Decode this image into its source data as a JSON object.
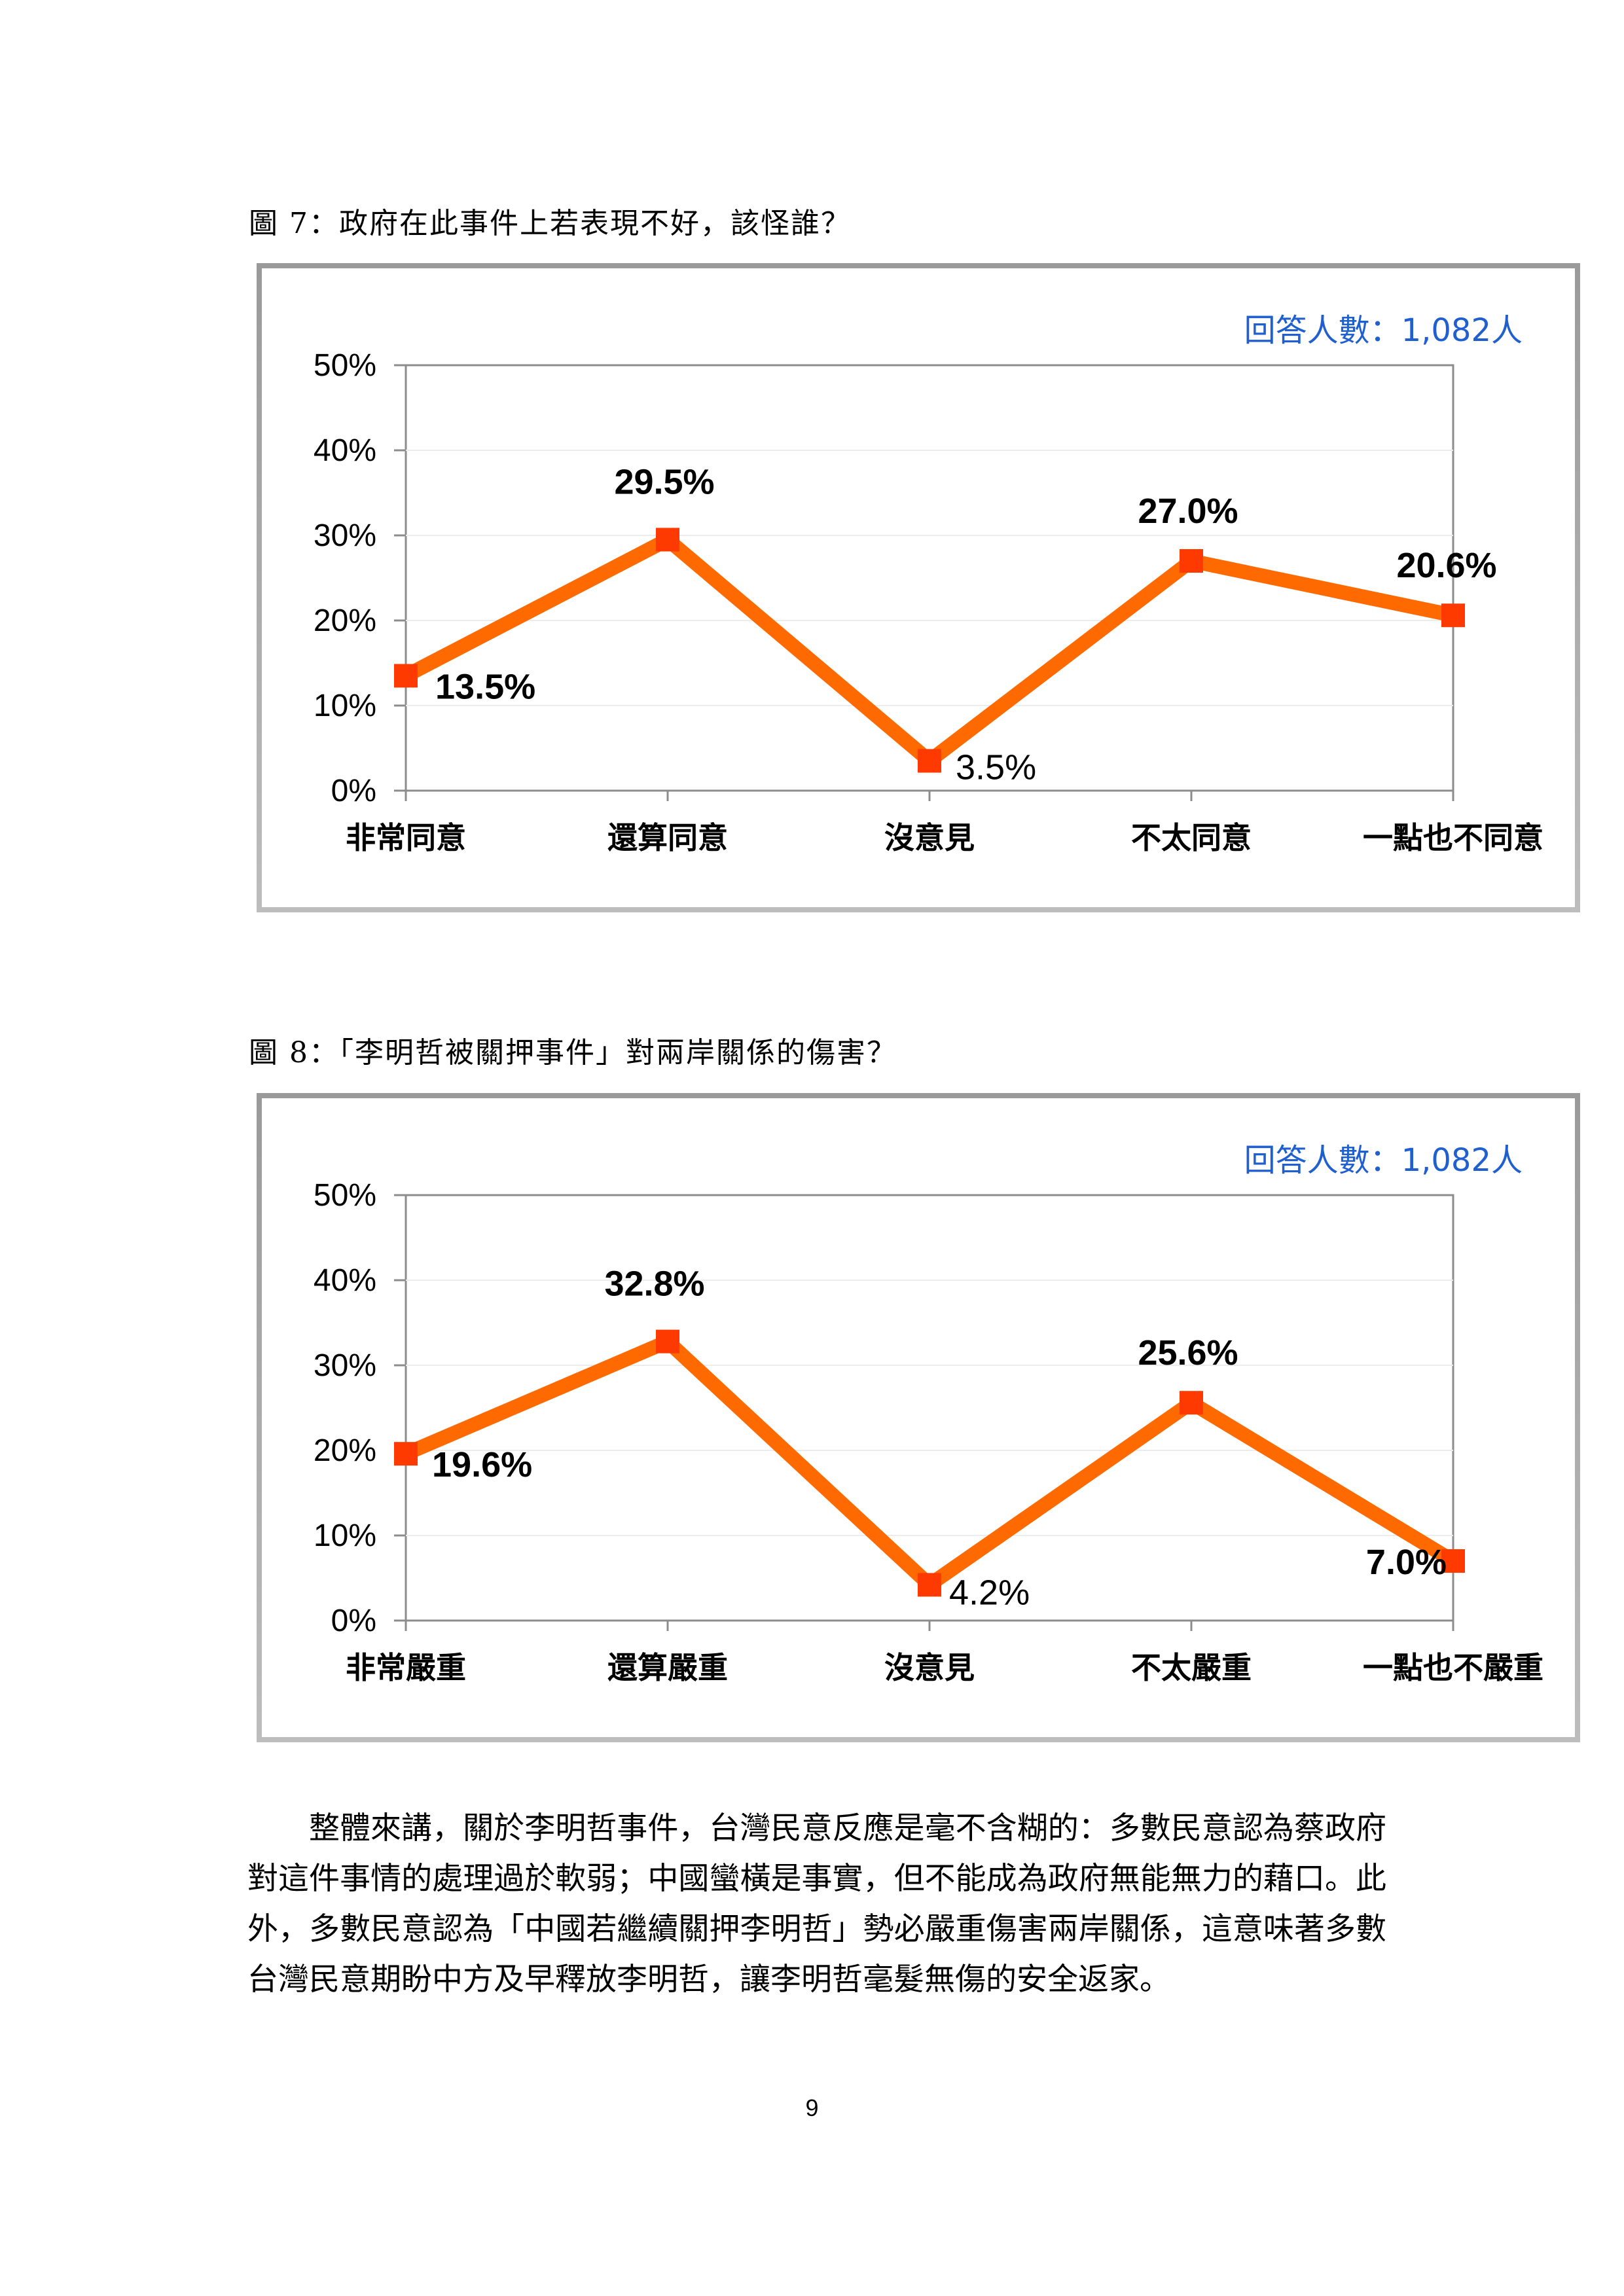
{
  "chart_data": [
    {
      "type": "line",
      "title": "圖 7：政府在此事件上若表現不好，該怪誰？",
      "note": "回答人數：1,082人",
      "categories": [
        "非常同意",
        "還算同意",
        "沒意見",
        "不太同意",
        "一點也不同意"
      ],
      "values": [
        13.5,
        29.5,
        3.5,
        27.0,
        20.6
      ],
      "data_labels": [
        "13.5%",
        "29.5%",
        "3.5%",
        "27.0%",
        "20.6%"
      ],
      "label_bold": [
        true,
        true,
        false,
        true,
        true
      ],
      "ylim": [
        0,
        50
      ],
      "yticks": [
        0,
        10,
        20,
        30,
        40,
        50
      ],
      "ytick_labels": [
        "0%",
        "10%",
        "20%",
        "30%",
        "40%",
        "50%"
      ],
      "grid": true,
      "line_color": "#ff6a00",
      "marker_color": "#ff3a00"
    },
    {
      "type": "line",
      "title": "圖 8：「李明哲被關押事件」對兩岸關係的傷害？",
      "note": "回答人數：1,082人",
      "categories": [
        "非常嚴重",
        "還算嚴重",
        "沒意見",
        "不太嚴重",
        "一點也不嚴重"
      ],
      "values": [
        19.6,
        32.8,
        4.2,
        25.6,
        7.0
      ],
      "data_labels": [
        "19.6%",
        "32.8%",
        "4.2%",
        "25.6%",
        "7.0%"
      ],
      "label_bold": [
        true,
        true,
        false,
        true,
        true
      ],
      "ylim": [
        0,
        50
      ],
      "yticks": [
        0,
        10,
        20,
        30,
        40,
        50
      ],
      "ytick_labels": [
        "0%",
        "10%",
        "20%",
        "30%",
        "40%",
        "50%"
      ],
      "grid": true,
      "line_color": "#ff6a00",
      "marker_color": "#ff3a00"
    }
  ],
  "body_text": "整體來講，關於李明哲事件，台灣民意反應是毫不含糊的：多數民意認為蔡政府對這件事情的處理過於軟弱；中國蠻橫是事實，但不能成為政府無能無力的藉口。此外，多數民意認為「中國若繼續關押李明哲」勢必嚴重傷害兩岸關係，這意味著多數台灣民意期盼中方及早釋放李明哲，讓李明哲毫髮無傷的安全返家。",
  "page_number": "9"
}
